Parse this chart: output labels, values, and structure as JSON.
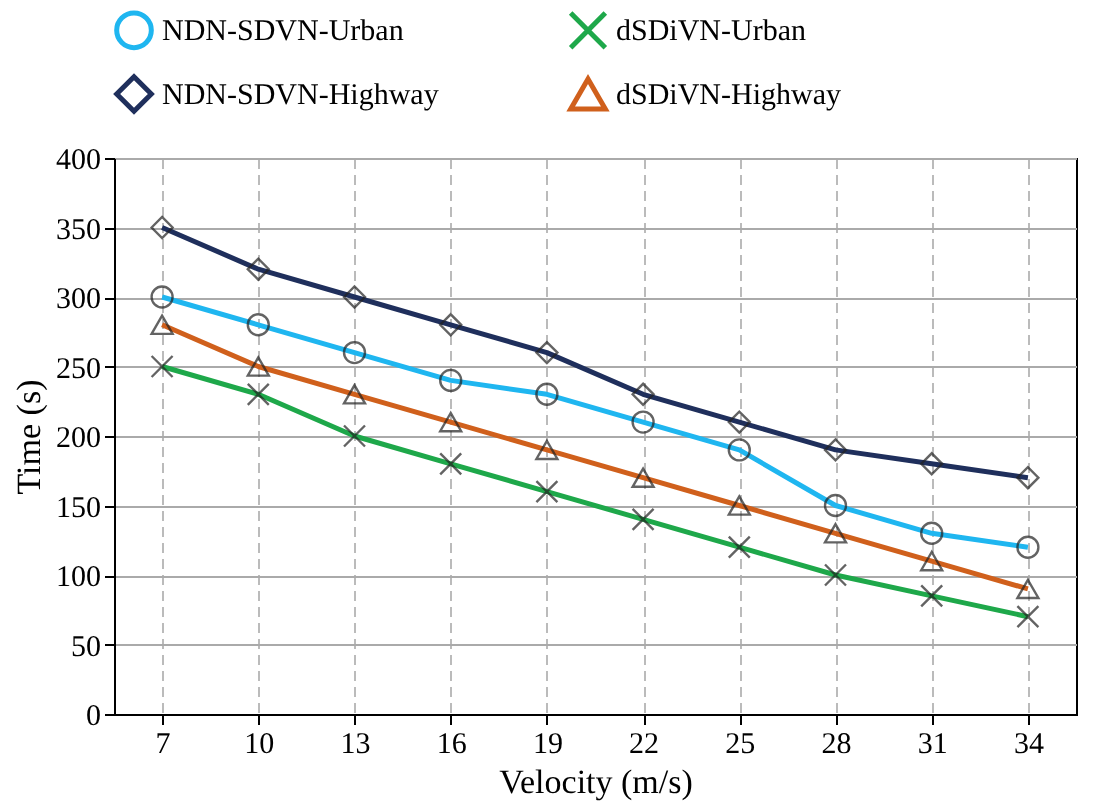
{
  "chart_data": {
    "type": "line",
    "xlabel": "Velocity (m/s)",
    "ylabel": "Time (s)",
    "categories": [
      "7",
      "10",
      "13",
      "16",
      "19",
      "22",
      "25",
      "28",
      "31",
      "34"
    ],
    "series": [
      {
        "name": "NDN-SDVN-Urban",
        "color": "#1fb6f0",
        "marker": "circle",
        "values": [
          300,
          280,
          260,
          240,
          230,
          210,
          190,
          150,
          130,
          120
        ]
      },
      {
        "name": "dSDiVN-Urban",
        "color": "#1ea84a",
        "marker": "cross",
        "values": [
          250,
          230,
          200,
          180,
          160,
          140,
          120,
          100,
          85,
          70
        ]
      },
      {
        "name": "NDN-SDVN-Highway",
        "color": "#1f2f5c",
        "marker": "diamond",
        "values": [
          350,
          320,
          300,
          280,
          260,
          230,
          210,
          190,
          180,
          170
        ]
      },
      {
        "name": "dSDiVN-Highway",
        "color": "#d0601c",
        "marker": "triangle",
        "values": [
          280,
          250,
          230,
          210,
          190,
          170,
          150,
          130,
          110,
          90
        ]
      }
    ],
    "ylim": [
      0,
      400
    ],
    "yticks": [
      0,
      50,
      100,
      150,
      200,
      250,
      300,
      350,
      400
    ],
    "grid": true,
    "legend": "top",
    "line_style": "solid"
  }
}
